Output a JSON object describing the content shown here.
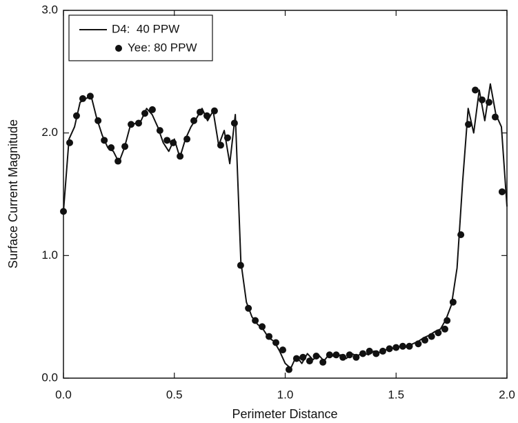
{
  "chart_data": {
    "type": "line",
    "xlabel": "Perimeter Distance",
    "ylabel": "Surface Current Magnitude",
    "xlim": [
      0,
      2
    ],
    "ylim": [
      0,
      3
    ],
    "xticks": [
      {
        "value": 0,
        "label": "0.0"
      },
      {
        "value": 0.5,
        "label": "0.5"
      },
      {
        "value": 1,
        "label": "1.0"
      },
      {
        "value": 1.5,
        "label": "1.5"
      },
      {
        "value": 2,
        "label": "2.0"
      }
    ],
    "yticks": [
      {
        "value": 0,
        "label": "0.0"
      },
      {
        "value": 1,
        "label": "1.0"
      },
      {
        "value": 2,
        "label": "2.0"
      },
      {
        "value": 3,
        "label": "3.0"
      }
    ],
    "grid": false,
    "legend": "upper left",
    "series": [
      {
        "name": "D4:  40 PPW",
        "color": "#111111",
        "mode": "line",
        "x": [
          0,
          0.025,
          0.05,
          0.075,
          0.1,
          0.125,
          0.15,
          0.175,
          0.2,
          0.225,
          0.25,
          0.275,
          0.3,
          0.325,
          0.35,
          0.375,
          0.4,
          0.425,
          0.45,
          0.475,
          0.5,
          0.525,
          0.55,
          0.575,
          0.6,
          0.625,
          0.65,
          0.675,
          0.7,
          0.725,
          0.75,
          0.775,
          0.8,
          0.825,
          0.85,
          0.875,
          0.9,
          0.925,
          0.95,
          0.975,
          1,
          1.025,
          1.05,
          1.075,
          1.1,
          1.125,
          1.15,
          1.175,
          1.2,
          1.225,
          1.25,
          1.275,
          1.3,
          1.325,
          1.35,
          1.375,
          1.4,
          1.425,
          1.45,
          1.475,
          1.5,
          1.525,
          1.55,
          1.575,
          1.6,
          1.625,
          1.65,
          1.675,
          1.7,
          1.725,
          1.75,
          1.775,
          1.8,
          1.825,
          1.85,
          1.875,
          1.9,
          1.925,
          1.95,
          1.975,
          2
        ],
        "values": [
          1.36,
          1.95,
          2.05,
          2.25,
          2.28,
          2.3,
          2.12,
          1.98,
          1.88,
          1.85,
          1.76,
          1.88,
          2.05,
          2.08,
          2.1,
          2.2,
          2.15,
          2.05,
          1.92,
          1.85,
          1.95,
          1.8,
          1.95,
          2.05,
          2.12,
          2.2,
          2.1,
          2.18,
          1.9,
          2.02,
          1.75,
          2.15,
          0.95,
          0.62,
          0.5,
          0.44,
          0.4,
          0.33,
          0.3,
          0.22,
          0.12,
          0.08,
          0.18,
          0.12,
          0.2,
          0.15,
          0.19,
          0.14,
          0.2,
          0.17,
          0.19,
          0.16,
          0.2,
          0.18,
          0.21,
          0.19,
          0.22,
          0.21,
          0.23,
          0.24,
          0.25,
          0.26,
          0.25,
          0.28,
          0.3,
          0.33,
          0.35,
          0.38,
          0.4,
          0.48,
          0.6,
          0.9,
          1.6,
          2.2,
          2.0,
          2.35,
          2.1,
          2.4,
          2.15,
          2.05,
          1.4
        ]
      },
      {
        "name": "Yee: 80 PPW",
        "color": "#111111",
        "mode": "markers",
        "x": [
          0,
          0.028,
          0.059,
          0.087,
          0.121,
          0.156,
          0.184,
          0.215,
          0.246,
          0.277,
          0.305,
          0.339,
          0.367,
          0.401,
          0.435,
          0.467,
          0.495,
          0.526,
          0.557,
          0.588,
          0.616,
          0.647,
          0.681,
          0.709,
          0.74,
          0.771,
          0.799,
          0.834,
          0.865,
          0.896,
          0.927,
          0.958,
          0.989,
          1.017,
          1.051,
          1.08,
          1.11,
          1.14,
          1.17,
          1.2,
          1.23,
          1.26,
          1.29,
          1.32,
          1.35,
          1.38,
          1.41,
          1.44,
          1.47,
          1.5,
          1.53,
          1.56,
          1.6,
          1.63,
          1.66,
          1.69,
          1.72,
          1.73,
          1.757,
          1.792,
          1.826,
          1.857,
          1.888,
          1.919,
          1.947,
          1.978
        ],
        "values": [
          1.36,
          1.92,
          2.14,
          2.28,
          2.3,
          2.1,
          1.94,
          1.88,
          1.77,
          1.89,
          2.07,
          2.08,
          2.16,
          2.19,
          2.02,
          1.94,
          1.92,
          1.81,
          1.95,
          2.1,
          2.17,
          2.14,
          2.18,
          1.9,
          1.96,
          2.08,
          0.92,
          0.57,
          0.47,
          0.42,
          0.34,
          0.29,
          0.23,
          0.07,
          0.16,
          0.17,
          0.14,
          0.18,
          0.13,
          0.19,
          0.19,
          0.17,
          0.19,
          0.17,
          0.2,
          0.22,
          0.2,
          0.22,
          0.24,
          0.25,
          0.26,
          0.26,
          0.28,
          0.31,
          0.34,
          0.37,
          0.4,
          0.47,
          0.62,
          1.17,
          2.07,
          2.35,
          2.27,
          2.25,
          2.13,
          1.52
        ]
      }
    ]
  }
}
